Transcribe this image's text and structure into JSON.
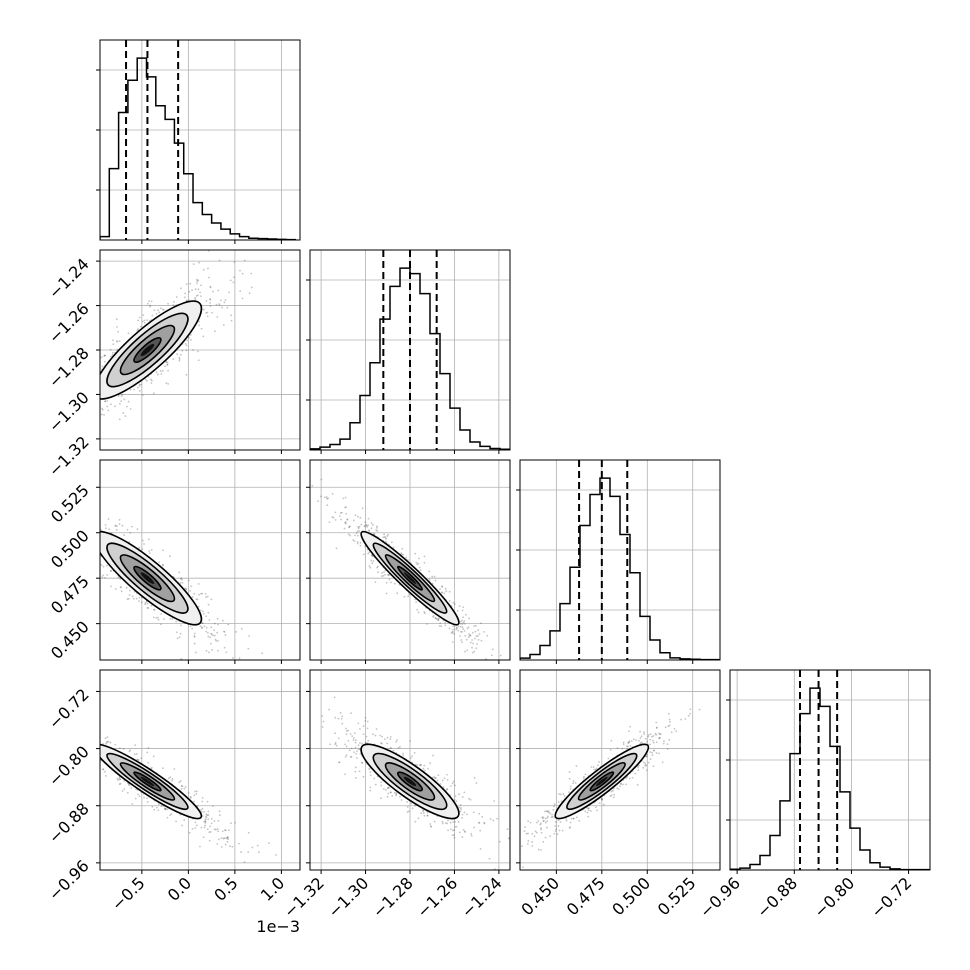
{
  "chart_data": {
    "type": "corner",
    "parameters": [
      {
        "id": "p0",
        "range": [
          -0.00095,
          0.0012
        ],
        "ticks": [
          -0.0005,
          0.0,
          0.0005,
          0.001
        ],
        "tick_labels": [
          "−0.5",
          "0.0",
          "0.5",
          "1.0"
        ],
        "offset_label": "1e−3",
        "quantiles": [
          -0.00067,
          -0.00044,
          -0.00011
        ],
        "histogram": {
          "bin_start": -0.00095,
          "bin_width": 0.0001,
          "counts": [
            10,
            210,
            375,
            470,
            535,
            480,
            395,
            355,
            285,
            195,
            110,
            75,
            50,
            32,
            18,
            10,
            5,
            4,
            3,
            2,
            1
          ]
        }
      },
      {
        "id": "p1",
        "range": [
          -1.325,
          -1.235
        ],
        "ticks": [
          -1.32,
          -1.3,
          -1.28,
          -1.26,
          -1.24
        ],
        "tick_labels": [
          "−1.32",
          "−1.30",
          "−1.28",
          "−1.26",
          "−1.24"
        ],
        "quantiles": [
          -1.292,
          -1.28,
          -1.268
        ],
        "histogram": {
          "bin_start": -1.325,
          "bin_width": 0.0045,
          "counts": [
            3,
            8,
            15,
            30,
            75,
            150,
            240,
            360,
            450,
            500,
            485,
            430,
            320,
            210,
            115,
            55,
            22,
            10,
            4,
            2
          ]
        }
      },
      {
        "id": "p2",
        "range": [
          0.43,
          0.54
        ],
        "ticks": [
          0.45,
          0.475,
          0.5,
          0.525
        ],
        "tick_labels": [
          "0.450",
          "0.475",
          "0.500",
          "0.525"
        ],
        "quantiles": [
          0.4625,
          0.475,
          0.489
        ],
        "histogram": {
          "bin_start": 0.43,
          "bin_width": 0.0055,
          "counts": [
            5,
            15,
            40,
            80,
            155,
            255,
            370,
            455,
            500,
            450,
            345,
            240,
            120,
            55,
            20,
            6,
            3,
            2,
            1,
            1
          ]
        }
      },
      {
        "id": "p3",
        "range": [
          -0.97,
          -0.69
        ],
        "ticks": [
          -0.96,
          -0.88,
          -0.8,
          -0.72
        ],
        "tick_labels": [
          "−0.96",
          "−0.88",
          "−0.80",
          "−0.72"
        ],
        "quantiles": [
          -0.872,
          -0.846,
          -0.82
        ],
        "histogram": {
          "bin_start": -0.97,
          "bin_width": 0.014,
          "counts": [
            2,
            5,
            15,
            40,
            95,
            190,
            320,
            430,
            500,
            450,
            340,
            215,
            115,
            55,
            20,
            8,
            3,
            1,
            1,
            1
          ]
        }
      }
    ],
    "pairs": [
      {
        "x": "p0",
        "y": "p1",
        "mean": [
          -0.00044,
          -1.28
        ],
        "sd": [
          0.00029,
          0.011
        ],
        "rho": 0.85
      },
      {
        "x": "p0",
        "y": "p2",
        "mean": [
          -0.00044,
          0.475
        ],
        "sd": [
          0.00029,
          0.0128
        ],
        "rho": -0.88
      },
      {
        "x": "p0",
        "y": "p3",
        "mean": [
          -0.00044,
          -0.846
        ],
        "sd": [
          0.00029,
          0.026
        ],
        "rho": -0.93
      },
      {
        "x": "p1",
        "y": "p2",
        "mean": [
          -1.28,
          0.475
        ],
        "sd": [
          0.011,
          0.0128
        ],
        "rho": -0.95
      },
      {
        "x": "p1",
        "y": "p3",
        "mean": [
          -1.28,
          -0.846
        ],
        "sd": [
          0.011,
          0.026
        ],
        "rho": -0.86
      },
      {
        "x": "p2",
        "y": "p3",
        "mean": [
          0.475,
          -0.846
        ],
        "sd": [
          0.0128,
          0.026
        ],
        "rho": 0.92
      }
    ],
    "contour_levels_sigma": [
      0.5,
      1.0,
      1.5,
      2.0
    ],
    "grid": true,
    "colors": {
      "line": "#000000",
      "grid": "#b0b0b0",
      "density": "#000000",
      "points": "#555555"
    }
  }
}
